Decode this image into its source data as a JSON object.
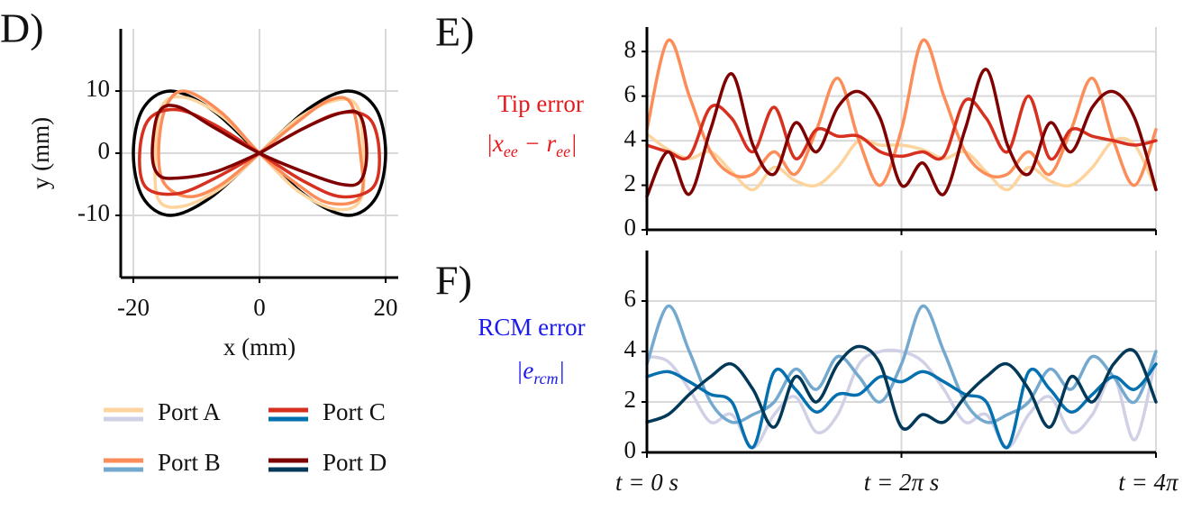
{
  "chart_data": [
    {
      "type": "line",
      "panel_label": "D)",
      "xlabel": "x (mm)",
      "ylabel": "y (mm)",
      "xlim": [
        -22,
        22
      ],
      "ylim": [
        -20,
        20
      ],
      "xticks": [
        -20,
        0,
        20
      ],
      "yticks": [
        -10,
        0,
        10
      ],
      "grid": true,
      "series": [
        {
          "color": "#000000",
          "x": [
            0,
            7.7,
            14.1,
            18.5,
            20,
            18.5,
            14.1,
            7.7,
            0,
            -7.7,
            -14.1,
            -18.5,
            -20,
            -18.5,
            -14.1,
            -7.7,
            0
          ],
          "values": [
            0,
            7.1,
            10,
            7.1,
            0,
            -7.1,
            -10,
            -7.1,
            0,
            7.1,
            10,
            7.1,
            0,
            -7.1,
            -10,
            -7.1,
            0
          ]
        },
        {
          "color": "#fdd49e",
          "x": [
            0,
            6,
            12,
            15.5,
            16.5,
            16,
            12,
            6,
            0,
            -6,
            -12,
            -15.5,
            -16.5,
            -16,
            -12,
            -6,
            0
          ],
          "values": [
            0,
            5.5,
            8.5,
            7.5,
            0,
            -7.5,
            -9,
            -6,
            0,
            6,
            9,
            7.5,
            0,
            -7.5,
            -8.5,
            -5.5,
            0
          ]
        },
        {
          "color": "#fc8d59",
          "x": [
            0,
            6,
            11,
            14.5,
            16,
            16,
            11,
            6,
            0,
            -6,
            -12,
            -15,
            -16,
            -15,
            -11,
            -6,
            0
          ],
          "values": [
            0,
            5,
            8.5,
            8,
            0,
            -7,
            -8,
            -5,
            0,
            6.5,
            10,
            7,
            0,
            -5,
            -7,
            -5,
            0
          ]
        },
        {
          "color": "#d7301f",
          "x": [
            0,
            7,
            13,
            17.5,
            19,
            18,
            13,
            7,
            0,
            -7,
            -13,
            -17.5,
            -19,
            -18,
            -13,
            -7,
            0
          ],
          "values": [
            0,
            4,
            6.5,
            5.5,
            0,
            -5.5,
            -7,
            -4.5,
            0,
            4.5,
            7,
            5.5,
            0,
            -5.5,
            -6.5,
            -4,
            0
          ]
        },
        {
          "color": "#7f0000",
          "x": [
            0,
            7,
            13,
            16,
            17,
            16,
            13,
            7,
            0,
            -7,
            -13,
            -16,
            -17,
            -16,
            -13,
            -7,
            0
          ],
          "values": [
            0,
            4,
            6.5,
            6,
            0,
            -4.5,
            -5,
            -3,
            0,
            4,
            7.5,
            6.5,
            0,
            -3.5,
            -4,
            -3,
            0
          ]
        }
      ]
    },
    {
      "type": "line",
      "panel_label": "E)",
      "ylabel": "Tip error",
      "ylabel_color": "#e8191c",
      "ylabel_formula": [
        "|x",
        "ee",
        " − r",
        "ee",
        "|"
      ],
      "xlim": [
        0,
        12.566
      ],
      "ylim": [
        0,
        9.1
      ],
      "xticks": [
        0,
        6.283,
        12.566
      ],
      "yticks": [
        0,
        2,
        4,
        6,
        8
      ],
      "grid": true,
      "x": [
        0,
        0.524,
        1.047,
        1.571,
        2.094,
        2.618,
        3.142,
        3.665,
        4.189,
        4.712,
        5.236,
        5.76,
        6.283,
        6.807,
        7.33,
        7.854,
        8.378,
        8.901,
        9.425,
        9.948,
        10.472,
        10.996,
        11.519,
        12.043,
        12.566
      ],
      "series": [
        {
          "name": "Port A",
          "color": "#fdd49e",
          "values": [
            4.3,
            3.6,
            3.2,
            3.5,
            2.6,
            1.8,
            2.8,
            2.2,
            2.0,
            2.8,
            4.0,
            3.8,
            3.8,
            3.6,
            3.2,
            3.5,
            2.6,
            1.8,
            2.8,
            2.2,
            2.0,
            2.8,
            4.0,
            3.8,
            1.8
          ]
        },
        {
          "name": "Port B",
          "color": "#fc8d59",
          "values": [
            4.5,
            8.5,
            6.0,
            3.5,
            2.5,
            2.5,
            3.5,
            2.5,
            4.5,
            6.8,
            4.0,
            2.0,
            4.5,
            8.5,
            6.0,
            3.5,
            2.5,
            2.5,
            3.5,
            2.5,
            4.5,
            6.8,
            4.0,
            2.0,
            4.5
          ]
        },
        {
          "name": "Port C",
          "color": "#d7301f",
          "values": [
            3.8,
            3.5,
            3.3,
            5.5,
            5.0,
            3.5,
            5.5,
            3.2,
            4.5,
            4.2,
            4.2,
            3.5,
            3.3,
            3.5,
            3.3,
            5.8,
            5.0,
            3.5,
            6.0,
            3.2,
            4.5,
            4.2,
            4.0,
            3.8,
            4.0
          ]
        },
        {
          "name": "Port D",
          "color": "#7f0000",
          "values": [
            1.5,
            3.5,
            1.6,
            4.5,
            7.0,
            3.8,
            2.5,
            4.8,
            3.5,
            5.5,
            6.2,
            5.0,
            2.0,
            3.0,
            1.6,
            4.5,
            7.2,
            3.8,
            2.5,
            4.8,
            3.5,
            5.5,
            6.2,
            5.0,
            1.8
          ]
        }
      ]
    },
    {
      "type": "line",
      "panel_label": "F)",
      "ylabel": "RCM error",
      "ylabel_color": "#1a1aee",
      "ylabel_formula": [
        "|e",
        "rcm",
        "|"
      ],
      "xlim": [
        0,
        12.566
      ],
      "ylim": [
        0,
        8
      ],
      "xticks": [
        {
          "value": 0,
          "label": "t = 0 s"
        },
        {
          "value": 6.283,
          "label": "t = 2π s"
        },
        {
          "value": 12.566,
          "label": "t = 4π s"
        }
      ],
      "yticks": [
        0,
        2,
        4,
        6
      ],
      "grid": true,
      "x": [
        0,
        0.524,
        1.047,
        1.571,
        2.094,
        2.618,
        3.142,
        3.665,
        4.189,
        4.712,
        5.236,
        5.76,
        6.283,
        6.807,
        7.33,
        7.854,
        8.378,
        8.901,
        9.425,
        9.948,
        10.472,
        10.996,
        11.519,
        12.043,
        12.566
      ],
      "series": [
        {
          "color": "#d0d1e6",
          "values": [
            3.8,
            3.6,
            2.5,
            1.2,
            1.5,
            0.2,
            1.5,
            2.2,
            0.8,
            1.5,
            3.5,
            4.0,
            4.0,
            3.6,
            2.5,
            1.2,
            1.5,
            0.2,
            1.5,
            2.2,
            0.8,
            1.5,
            3.0,
            0.5,
            3.8
          ]
        },
        {
          "color": "#74a9cf",
          "values": [
            3.5,
            5.8,
            4.0,
            2.0,
            1.2,
            1.5,
            2.0,
            3.3,
            2.5,
            3.8,
            3.0,
            2.0,
            3.5,
            5.8,
            4.0,
            2.0,
            1.2,
            1.5,
            2.0,
            3.3,
            2.5,
            3.8,
            3.0,
            2.0,
            4.0
          ]
        },
        {
          "color": "#0570b0",
          "values": [
            3.0,
            3.2,
            2.8,
            2.3,
            2.0,
            0.2,
            3.2,
            2.5,
            1.6,
            2.3,
            2.3,
            3.0,
            2.8,
            3.2,
            2.8,
            2.3,
            2.0,
            0.2,
            3.2,
            2.5,
            1.6,
            2.3,
            3.0,
            2.5,
            3.5
          ]
        },
        {
          "color": "#023858",
          "values": [
            1.2,
            1.5,
            2.3,
            3.0,
            3.5,
            2.5,
            1.0,
            3.0,
            2.0,
            3.5,
            4.2,
            3.5,
            1.0,
            1.5,
            1.2,
            2.2,
            3.0,
            3.5,
            2.5,
            1.0,
            3.0,
            2.0,
            3.5,
            4.0,
            2.0
          ]
        }
      ]
    }
  ]
}
